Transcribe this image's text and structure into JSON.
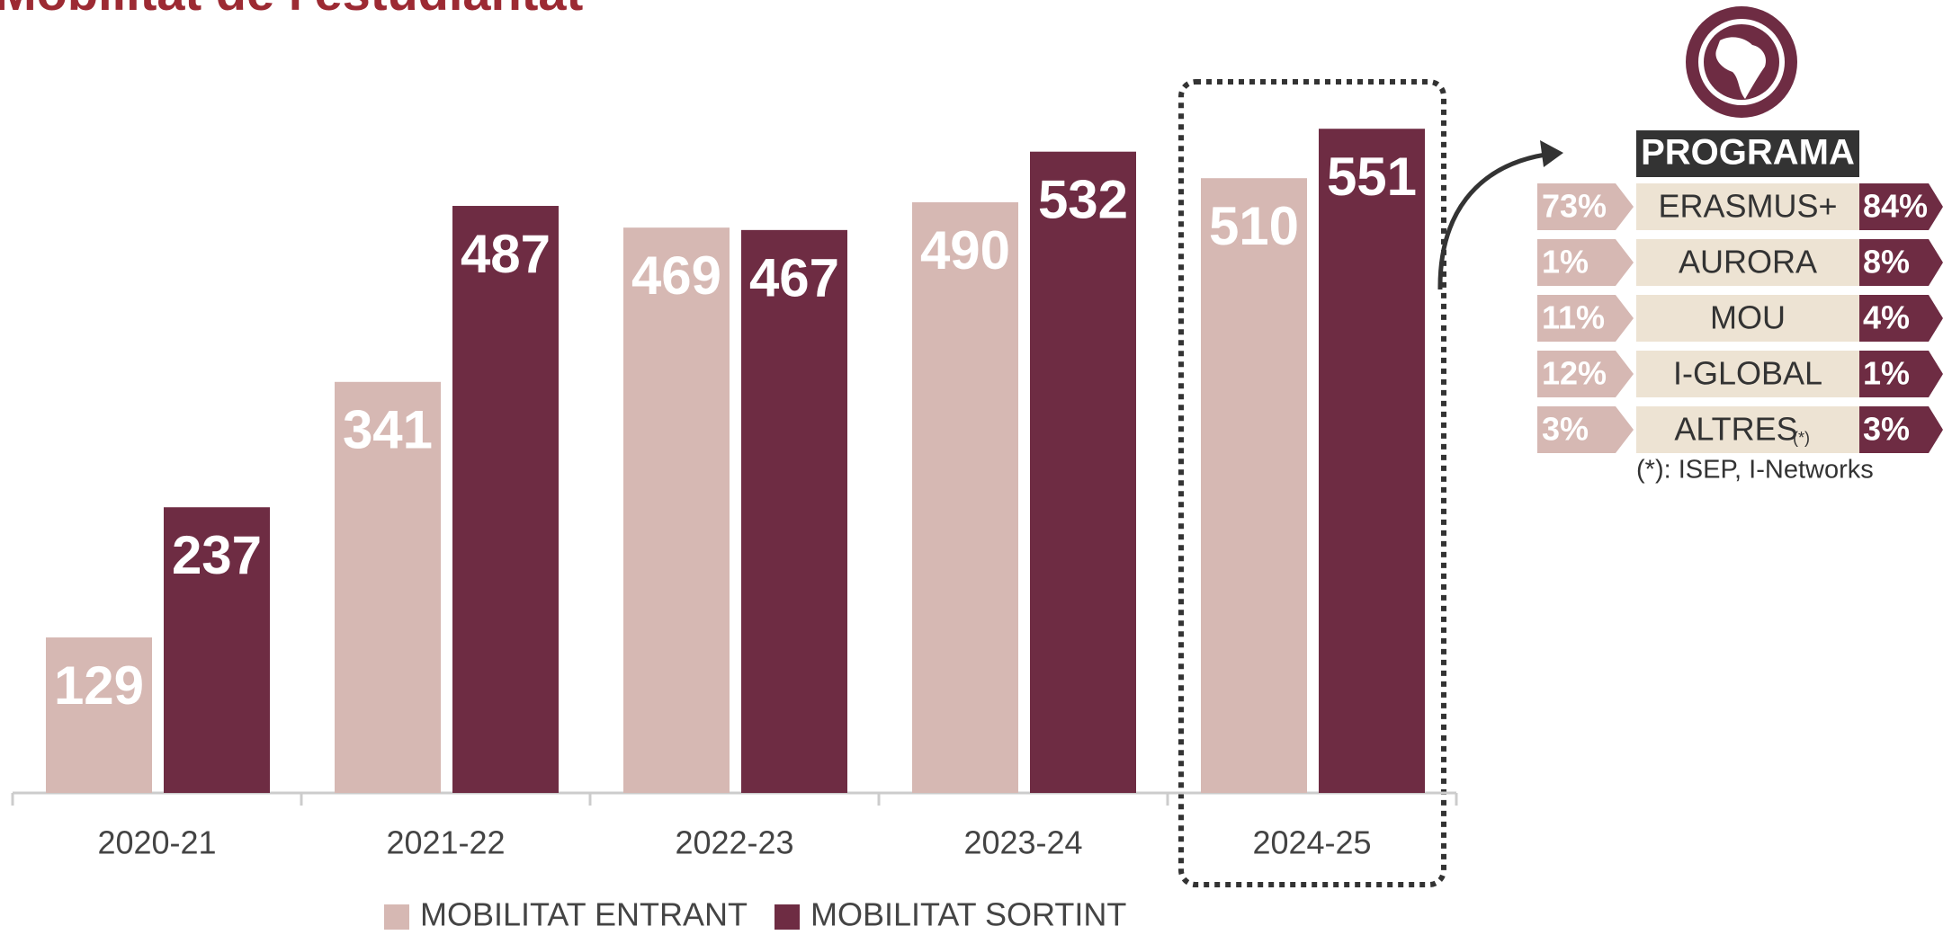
{
  "chart_data": {
    "type": "bar",
    "title": "Mobilitat de l'estudiantat",
    "categories": [
      "2020-21",
      "2021-22",
      "2022-23",
      "2023-24",
      "2024-25"
    ],
    "series": [
      {
        "name": "MOBILITAT ENTRANT",
        "color": "#d6b8b3",
        "values": [
          129,
          341,
          469,
          490,
          510
        ]
      },
      {
        "name": "MOBILITAT SORTINT",
        "color": "#6e2c43",
        "values": [
          237,
          487,
          467,
          532,
          551
        ]
      }
    ],
    "legend": "bottom"
  },
  "programs": {
    "header": "PROGRAMA",
    "rows": [
      {
        "entrant": "73%",
        "program": "ERASMUS+",
        "sortint": "84%"
      },
      {
        "entrant": "1%",
        "program": "AURORA",
        "sortint": "8%"
      },
      {
        "entrant": "11%",
        "program": "MOU",
        "sortint": "4%"
      },
      {
        "entrant": "12%",
        "program": "I-GLOBAL",
        "sortint": "1%"
      },
      {
        "entrant": "3%",
        "program": "ALTRES",
        "note": "(*)",
        "sortint": "3%"
      }
    ],
    "footnote": "(*): ISEP, I-Networks"
  }
}
